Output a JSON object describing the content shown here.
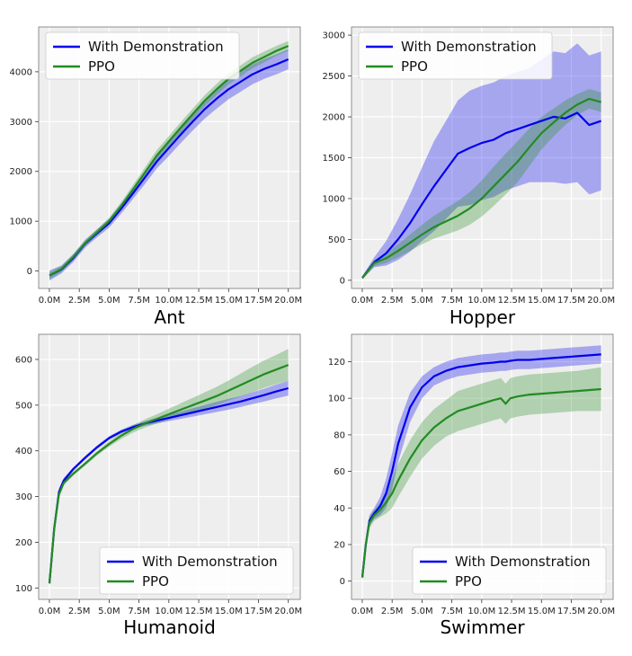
{
  "figure": {
    "legend_entries": [
      "With Demonstration",
      "PPO"
    ]
  },
  "chart_data": [
    {
      "type": "line",
      "title": "Ant",
      "xlabel": "",
      "ylabel": "",
      "x_ticks": [
        "0.0M",
        "2.5M",
        "5.0M",
        "7.5M",
        "10.0M",
        "12.5M",
        "15.0M",
        "17.5M",
        "20.0M"
      ],
      "y_ticks": [
        0,
        1000,
        2000,
        3000,
        4000
      ],
      "xlim": [
        -0.9,
        21.0
      ],
      "ylim": [
        -350,
        4900
      ],
      "legend": "top-left",
      "grid": true,
      "x": [
        0,
        1,
        2,
        3,
        4,
        5,
        6,
        7,
        8,
        9,
        10,
        11,
        12,
        13,
        14,
        15,
        16,
        17,
        18,
        19,
        20
      ],
      "series": [
        {
          "name": "With Demonstration",
          "color": "#0000ee",
          "values": [
            -90,
            30,
            260,
            550,
            760,
            960,
            1250,
            1560,
            1880,
            2200,
            2470,
            2740,
            3000,
            3250,
            3460,
            3650,
            3800,
            3950,
            4060,
            4150,
            4250
          ],
          "band": [
            100,
            80,
            80,
            80,
            80,
            90,
            100,
            110,
            130,
            140,
            160,
            170,
            180,
            190,
            200,
            200,
            200,
            200,
            200,
            200,
            200
          ]
        },
        {
          "name": "PPO",
          "color": "#228b22",
          "values": [
            -90,
            40,
            280,
            560,
            780,
            1000,
            1300,
            1640,
            1980,
            2320,
            2600,
            2880,
            3150,
            3420,
            3650,
            3860,
            4020,
            4180,
            4300,
            4420,
            4520
          ],
          "band": [
            80,
            60,
            60,
            60,
            60,
            70,
            80,
            90,
            100,
            110,
            110,
            110,
            110,
            110,
            110,
            110,
            110,
            110,
            110,
            100,
            100
          ]
        }
      ]
    },
    {
      "type": "line",
      "title": "Hopper",
      "xlabel": "",
      "ylabel": "",
      "x_ticks": [
        "0.0M",
        "2.5M",
        "5.0M",
        "7.5M",
        "10.0M",
        "12.5M",
        "15.0M",
        "17.5M",
        "20.0M"
      ],
      "y_ticks": [
        0,
        500,
        1000,
        1500,
        2000,
        2500,
        3000
      ],
      "xlim": [
        -0.9,
        21.0
      ],
      "ylim": [
        -100,
        3100
      ],
      "legend": "top-left",
      "grid": true,
      "x": [
        0,
        1,
        2,
        3,
        4,
        5,
        6,
        7,
        8,
        9,
        10,
        11,
        12,
        13,
        14,
        15,
        16,
        17,
        18,
        19,
        20
      ],
      "series": [
        {
          "name": "With Demonstration",
          "color": "#0000ee",
          "values": [
            30,
            220,
            330,
            500,
            700,
            930,
            1150,
            1350,
            1550,
            1620,
            1680,
            1720,
            1800,
            1850,
            1900,
            1950,
            2000,
            1980,
            2050,
            1900,
            1950
          ],
          "band": [
            20,
            60,
            150,
            250,
            350,
            450,
            550,
            600,
            650,
            700,
            700,
            700,
            700,
            700,
            700,
            750,
            800,
            800,
            850,
            850,
            850
          ]
        },
        {
          "name": "PPO",
          "color": "#228b22",
          "values": [
            30,
            210,
            270,
            360,
            460,
            560,
            650,
            720,
            790,
            880,
            1000,
            1150,
            1300,
            1450,
            1630,
            1800,
            1930,
            2050,
            2150,
            2220,
            2180
          ],
          "band": [
            20,
            40,
            60,
            80,
            100,
            120,
            140,
            160,
            180,
            200,
            220,
            240,
            250,
            250,
            230,
            200,
            170,
            150,
            130,
            120,
            120
          ]
        }
      ]
    },
    {
      "type": "line",
      "title": "Humanoid",
      "xlabel": "",
      "ylabel": "",
      "x_ticks": [
        "0.0M",
        "2.5M",
        "5.0M",
        "7.5M",
        "10.0M",
        "12.5M",
        "15.0M",
        "17.5M",
        "20.0M"
      ],
      "y_ticks": [
        100,
        200,
        300,
        400,
        500,
        600
      ],
      "xlim": [
        -0.9,
        21.0
      ],
      "ylim": [
        75,
        655
      ],
      "legend": "bottom-right",
      "grid": true,
      "x": [
        0,
        0.4,
        0.8,
        1.2,
        2,
        3,
        4,
        5,
        6,
        7,
        8,
        9,
        10,
        11,
        12,
        13,
        14,
        15,
        16,
        17,
        18,
        19,
        20
      ],
      "series": [
        {
          "name": "With Demonstration",
          "color": "#0000ee",
          "values": [
            110,
            230,
            310,
            335,
            360,
            385,
            408,
            428,
            442,
            452,
            460,
            466,
            472,
            478,
            484,
            490,
            496,
            502,
            508,
            515,
            522,
            530,
            537
          ],
          "band": [
            2,
            8,
            8,
            6,
            4,
            4,
            4,
            4,
            4,
            5,
            5,
            6,
            7,
            8,
            9,
            10,
            11,
            12,
            12,
            13,
            14,
            15,
            16
          ]
        },
        {
          "name": "PPO",
          "color": "#228b22",
          "values": [
            110,
            230,
            305,
            330,
            350,
            372,
            395,
            415,
            433,
            448,
            460,
            470,
            480,
            490,
            500,
            510,
            520,
            532,
            544,
            556,
            568,
            578,
            588
          ],
          "band": [
            2,
            8,
            8,
            6,
            4,
            4,
            5,
            6,
            7,
            8,
            9,
            10,
            12,
            14,
            16,
            18,
            20,
            22,
            25,
            28,
            30,
            32,
            35
          ]
        }
      ]
    },
    {
      "type": "line",
      "title": "Swimmer",
      "xlabel": "",
      "ylabel": "",
      "x_ticks": [
        "0.0M",
        "2.5M",
        "5.0M",
        "7.5M",
        "10.0M",
        "12.5M",
        "15.0M",
        "17.5M",
        "20.0M"
      ],
      "y_ticks": [
        0,
        20,
        40,
        60,
        80,
        100,
        120
      ],
      "xlim": [
        -0.9,
        21.0
      ],
      "ylim": [
        -10,
        135
      ],
      "legend": "bottom-right",
      "grid": true,
      "x": [
        0,
        0.3,
        0.6,
        1,
        1.5,
        2,
        2.5,
        3,
        4,
        5,
        6,
        7,
        8,
        9,
        10,
        11,
        11.6,
        12,
        12.4,
        13,
        14,
        16,
        18,
        20
      ],
      "series": [
        {
          "name": "With Demonstration",
          "color": "#0000ee",
          "values": [
            2,
            20,
            33,
            37,
            41,
            48,
            60,
            75,
            95,
            106,
            112,
            115,
            117,
            118,
            119,
            119.5,
            120,
            120,
            120.5,
            121,
            121,
            122,
            123,
            124
          ],
          "band": [
            1,
            3,
            3,
            3,
            5,
            8,
            10,
            10,
            8,
            6,
            5,
            5,
            5,
            5,
            5,
            5,
            5,
            5,
            5,
            5,
            5,
            5,
            5,
            5
          ]
        },
        {
          "name": "PPO",
          "color": "#228b22",
          "values": [
            2,
            20,
            32,
            36,
            39,
            43,
            48,
            55,
            67,
            77,
            84,
            89,
            93,
            95,
            97,
            99,
            100,
            97,
            100,
            101,
            102,
            103,
            104,
            105
          ],
          "band": [
            1,
            3,
            3,
            3,
            4,
            6,
            8,
            9,
            10,
            10,
            10,
            10,
            11,
            11,
            11,
            11,
            11,
            11,
            11,
            11,
            11,
            11,
            11,
            12
          ]
        }
      ]
    }
  ]
}
